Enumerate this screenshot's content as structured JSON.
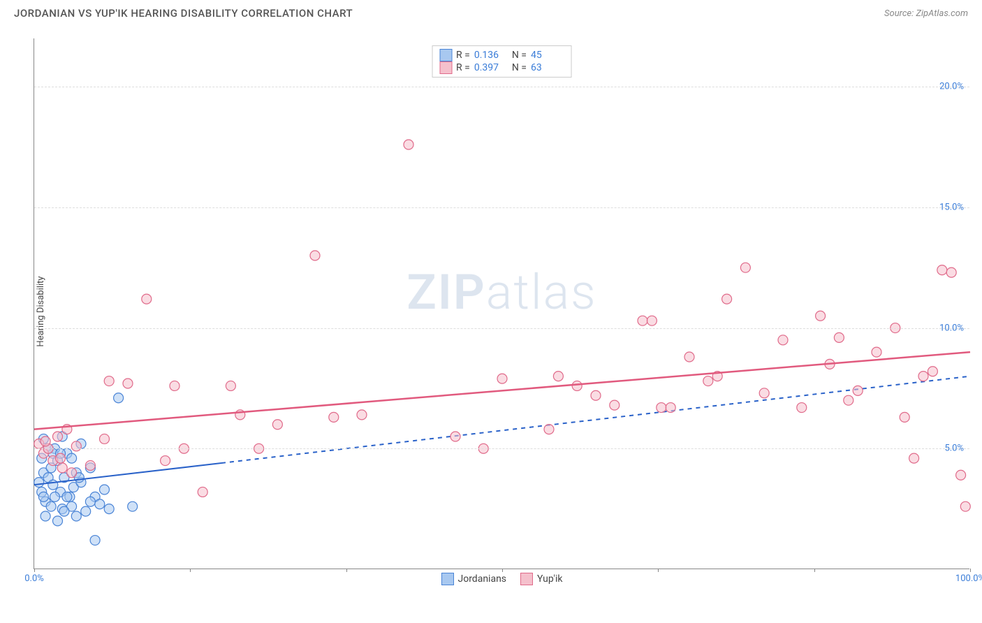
{
  "header": {
    "title": "JORDANIAN VS YUP'IK HEARING DISABILITY CORRELATION CHART",
    "source_prefix": "Source: ",
    "source_name": "ZipAtlas.com"
  },
  "watermark": {
    "bold": "ZIP",
    "light": "atlas"
  },
  "chart": {
    "type": "scatter",
    "ylabel": "Hearing Disability",
    "background_color": "#ffffff",
    "grid_color": "#dddddd",
    "axis_color": "#888888",
    "tick_label_color": "#3b7dd8",
    "tick_fontsize": 13,
    "xlim": [
      0,
      100
    ],
    "ylim": [
      0,
      22
    ],
    "xticks": [
      {
        "value": 0,
        "label": "0.0%"
      },
      {
        "value": 16.67,
        "label": null
      },
      {
        "value": 33.33,
        "label": null
      },
      {
        "value": 50.0,
        "label": null
      },
      {
        "value": 66.67,
        "label": null
      },
      {
        "value": 83.33,
        "label": null
      },
      {
        "value": 100,
        "label": "100.0%"
      }
    ],
    "yticks": [
      {
        "value": 5,
        "label": "5.0%"
      },
      {
        "value": 10,
        "label": "10.0%"
      },
      {
        "value": 15,
        "label": "15.0%"
      },
      {
        "value": 20,
        "label": "20.0%"
      }
    ],
    "marker_radius": 7,
    "marker_opacity": 0.55,
    "marker_stroke_width": 1.2,
    "series": [
      {
        "id": "jordanians",
        "name": "Jordanians",
        "color_fill": "#a8c8f0",
        "color_stroke": "#4a84d6",
        "line_color": "#2a62c9",
        "line_dash": "6,6",
        "line_solid_until_x": 20,
        "line_width": 2,
        "trend": {
          "y_at_x0": 3.5,
          "y_at_x100": 8.0
        },
        "stats": {
          "R": "0.136",
          "N": "45"
        },
        "points": [
          [
            0.5,
            3.6
          ],
          [
            0.8,
            3.2
          ],
          [
            1.0,
            4.0
          ],
          [
            1.2,
            2.8
          ],
          [
            1.5,
            3.8
          ],
          [
            1.0,
            3.0
          ],
          [
            1.8,
            4.2
          ],
          [
            2.0,
            3.5
          ],
          [
            2.2,
            5.0
          ],
          [
            2.5,
            4.5
          ],
          [
            2.8,
            3.2
          ],
          [
            3.0,
            2.5
          ],
          [
            3.2,
            3.8
          ],
          [
            3.5,
            4.8
          ],
          [
            3.8,
            3.0
          ],
          [
            4.0,
            2.6
          ],
          [
            4.2,
            3.4
          ],
          [
            4.5,
            4.0
          ],
          [
            5.0,
            3.6
          ],
          [
            5.5,
            2.4
          ],
          [
            6.0,
            4.2
          ],
          [
            6.5,
            3.0
          ],
          [
            7.0,
            2.7
          ],
          [
            7.5,
            3.3
          ],
          [
            8.0,
            2.5
          ],
          [
            4.5,
            2.2
          ],
          [
            5.0,
            5.2
          ],
          [
            6.0,
            2.8
          ],
          [
            9.0,
            7.1
          ],
          [
            2.0,
            4.8
          ],
          [
            3.0,
            5.5
          ],
          [
            1.5,
            5.0
          ],
          [
            0.8,
            4.6
          ],
          [
            2.5,
            2.0
          ],
          [
            1.2,
            2.2
          ],
          [
            2.8,
            4.8
          ],
          [
            3.5,
            3.0
          ],
          [
            4.0,
            4.6
          ],
          [
            2.2,
            3.0
          ],
          [
            1.8,
            2.6
          ],
          [
            6.5,
            1.2
          ],
          [
            1.0,
            5.4
          ],
          [
            10.5,
            2.6
          ],
          [
            4.8,
            3.8
          ],
          [
            3.2,
            2.4
          ]
        ]
      },
      {
        "id": "yupik",
        "name": "Yup'ik",
        "color_fill": "#f5c0cc",
        "color_stroke": "#e06a8a",
        "line_color": "#e15a7e",
        "line_dash": null,
        "line_solid_until_x": 100,
        "line_width": 2.5,
        "trend": {
          "y_at_x0": 5.8,
          "y_at_x100": 9.0
        },
        "stats": {
          "R": "0.397",
          "N": "63"
        },
        "points": [
          [
            0.5,
            5.2
          ],
          [
            1.0,
            4.8
          ],
          [
            1.5,
            5.0
          ],
          [
            2.0,
            4.5
          ],
          [
            2.5,
            5.5
          ],
          [
            3.0,
            4.2
          ],
          [
            3.5,
            5.8
          ],
          [
            4.0,
            4.0
          ],
          [
            8.0,
            7.8
          ],
          [
            10.0,
            7.7
          ],
          [
            12.0,
            11.2
          ],
          [
            15.0,
            7.6
          ],
          [
            16.0,
            5.0
          ],
          [
            18.0,
            3.2
          ],
          [
            21.0,
            7.6
          ],
          [
            22.0,
            6.4
          ],
          [
            24.0,
            5.0
          ],
          [
            30.0,
            13.0
          ],
          [
            32.0,
            6.3
          ],
          [
            35.0,
            6.4
          ],
          [
            40.0,
            17.6
          ],
          [
            48.0,
            5.0
          ],
          [
            50.0,
            7.9
          ],
          [
            55.0,
            5.8
          ],
          [
            56.0,
            8.0
          ],
          [
            58.0,
            7.6
          ],
          [
            62.0,
            6.8
          ],
          [
            65.0,
            10.3
          ],
          [
            66.0,
            10.3
          ],
          [
            67.0,
            6.7
          ],
          [
            68.0,
            6.7
          ],
          [
            72.0,
            7.8
          ],
          [
            73.0,
            8.0
          ],
          [
            74.0,
            11.2
          ],
          [
            76.0,
            12.5
          ],
          [
            78.0,
            7.3
          ],
          [
            80.0,
            9.5
          ],
          [
            82.0,
            6.7
          ],
          [
            84.0,
            10.5
          ],
          [
            86.0,
            9.6
          ],
          [
            87.0,
            7.0
          ],
          [
            88.0,
            7.4
          ],
          [
            90.0,
            9.0
          ],
          [
            92.0,
            10.0
          ],
          [
            93.0,
            6.3
          ],
          [
            94.0,
            4.6
          ],
          [
            95.0,
            8.0
          ],
          [
            96.0,
            8.2
          ],
          [
            97.0,
            12.4
          ],
          [
            98.0,
            12.3
          ],
          [
            99.0,
            3.9
          ],
          [
            99.5,
            2.6
          ],
          [
            1.2,
            5.3
          ],
          [
            2.8,
            4.6
          ],
          [
            4.5,
            5.1
          ],
          [
            6.0,
            4.3
          ],
          [
            7.5,
            5.4
          ],
          [
            14.0,
            4.5
          ],
          [
            26.0,
            6.0
          ],
          [
            45.0,
            5.5
          ],
          [
            60.0,
            7.2
          ],
          [
            70.0,
            8.8
          ],
          [
            85.0,
            8.5
          ]
        ]
      }
    ],
    "legend_top": {
      "border_color": "#cccccc",
      "labels": {
        "R": "R =",
        "N": "N ="
      }
    },
    "legend_bottom": [
      {
        "series": "jordanians"
      },
      {
        "series": "yupik"
      }
    ]
  }
}
